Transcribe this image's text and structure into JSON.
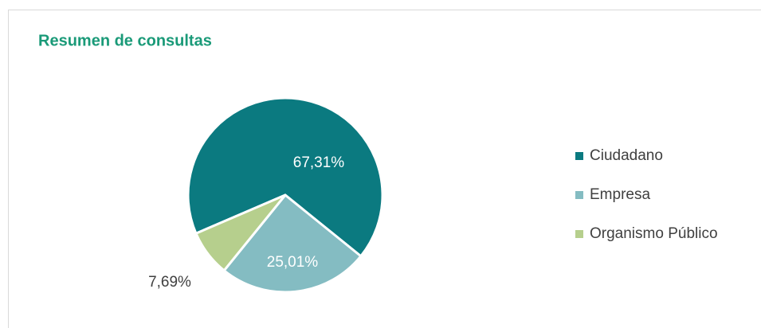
{
  "chart_data": {
    "type": "pie",
    "title": "Resumen de consultas",
    "categories": [
      "Ciudadano",
      "Empresa",
      "Organismo Público"
    ],
    "values": [
      67.31,
      25.01,
      7.69
    ],
    "value_labels": [
      "67,31%",
      "25,01%",
      "7,69%"
    ],
    "colors": [
      "#0b7a80",
      "#84bcc2",
      "#b6cf8d"
    ],
    "legend": "right"
  }
}
